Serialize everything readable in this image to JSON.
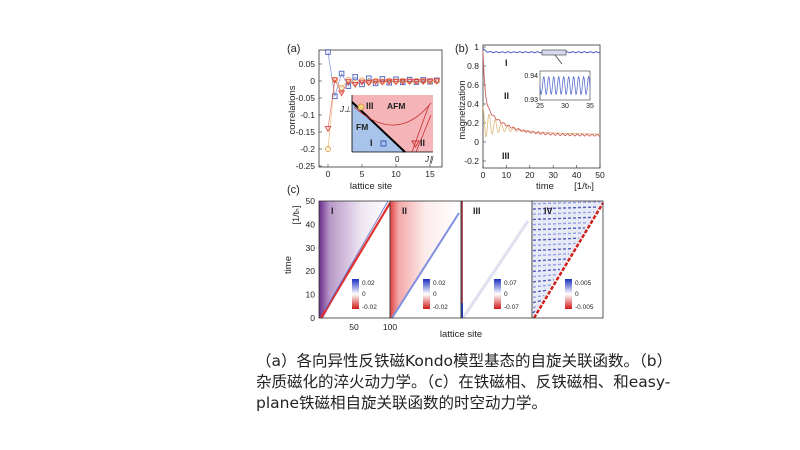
{
  "caption": {
    "lines": [
      "（a）各向异性反铁磁Kondo模型基态的自旋关联函数。（b）",
      "杂质磁化的淬火动力学。（c）在铁磁相、反铁磁相、和easy-",
      "plane铁磁相自旋关联函数的时空动力学。"
    ]
  },
  "chart_data": [
    {
      "panel": "(a)",
      "type": "scatter",
      "xlabel": "lattice site",
      "ylabel": "correlations",
      "xlim": [
        -1,
        16
      ],
      "ylim": [
        -0.25,
        0.07
      ],
      "xticks": [
        "0",
        "5",
        "10",
        "15"
      ],
      "yticks": [
        "0.05",
        "0",
        "-0.05",
        "-0.1",
        "-0.15",
        "-0.2",
        "-0.25"
      ],
      "x": [
        0,
        1,
        2,
        3,
        4,
        5,
        6,
        7,
        8,
        9,
        10,
        11,
        12,
        13,
        14,
        15,
        16
      ],
      "series": [
        {
          "marker": "square",
          "color": "#4a5fc1",
          "values": [
            0.085,
            -0.045,
            0.022,
            -0.015,
            0.012,
            -0.01,
            0.008,
            -0.007,
            0.006,
            -0.005,
            0.005,
            -0.004,
            0.004,
            -0.003,
            0.003,
            -0.002,
            0.002
          ]
        },
        {
          "marker": "circle",
          "color": "#e0a040",
          "values": [
            -0.2,
            0.004,
            -0.02,
            0.003,
            -0.006,
            0.002,
            -0.003,
            0.001,
            -0.002,
            0.001,
            -0.001,
            0.001,
            -0.001,
            0,
            0,
            0,
            0
          ]
        },
        {
          "marker": "triangle",
          "color": "#e04040",
          "values": [
            -0.14,
            0.003,
            -0.035,
            -0.002,
            -0.01,
            -0.003,
            -0.005,
            -0.002,
            -0.003,
            -0.001,
            -0.002,
            -0.001,
            -0.001,
            -0.001,
            -0.001,
            0,
            0
          ]
        }
      ],
      "inset": {
        "phases": [
          "III",
          "AFM",
          "FM",
          "I",
          "II"
        ],
        "xlabel": "J∥",
        "ylabel": "J⊥",
        "origin_label": "0",
        "colors": {
          "FM": "#a9c4ea",
          "AFM": "#f4b4b8"
        }
      }
    },
    {
      "panel": "(b)",
      "type": "line",
      "xlabel": "time",
      "xunit": "[1/tₕ]",
      "ylabel": "magnetization",
      "xlim": [
        0,
        50
      ],
      "ylim": [
        -0.25,
        1
      ],
      "xticks": [
        "0",
        "10",
        "20",
        "30",
        "40",
        "50"
      ],
      "yticks": [
        "1",
        "0.8",
        "0.6",
        "0.4",
        "0.2",
        "0",
        "-0.2"
      ],
      "series": [
        {
          "name": "I",
          "color": "#4a5fc1"
        },
        {
          "name": "II",
          "color": "#d0605a"
        },
        {
          "name": "III",
          "color": "#e2c08a"
        }
      ],
      "inset": {
        "xticks": [
          "25",
          "30",
          "35"
        ],
        "yticks": [
          "0.94",
          "0.93"
        ]
      }
    },
    {
      "panel": "(c)",
      "type": "heatmap",
      "xlabel": "lattice site",
      "ylabel": "time",
      "yunit": "[1/tₕ]",
      "xticks": [
        "50",
        "100"
      ],
      "yticks": [
        "0",
        "10",
        "20",
        "30",
        "40",
        "50"
      ],
      "subpanels": [
        {
          "label": "I",
          "colorbar": [
            "0.02",
            "0",
            "-0.02"
          ]
        },
        {
          "label": "II",
          "colorbar": [
            "0.02",
            "0",
            "-0.02"
          ]
        },
        {
          "label": "III",
          "colorbar": [
            "0.07",
            "0",
            "-0.07"
          ]
        },
        {
          "label": "IV",
          "colorbar": [
            "0.005",
            "0",
            "-0.005"
          ]
        }
      ]
    }
  ]
}
